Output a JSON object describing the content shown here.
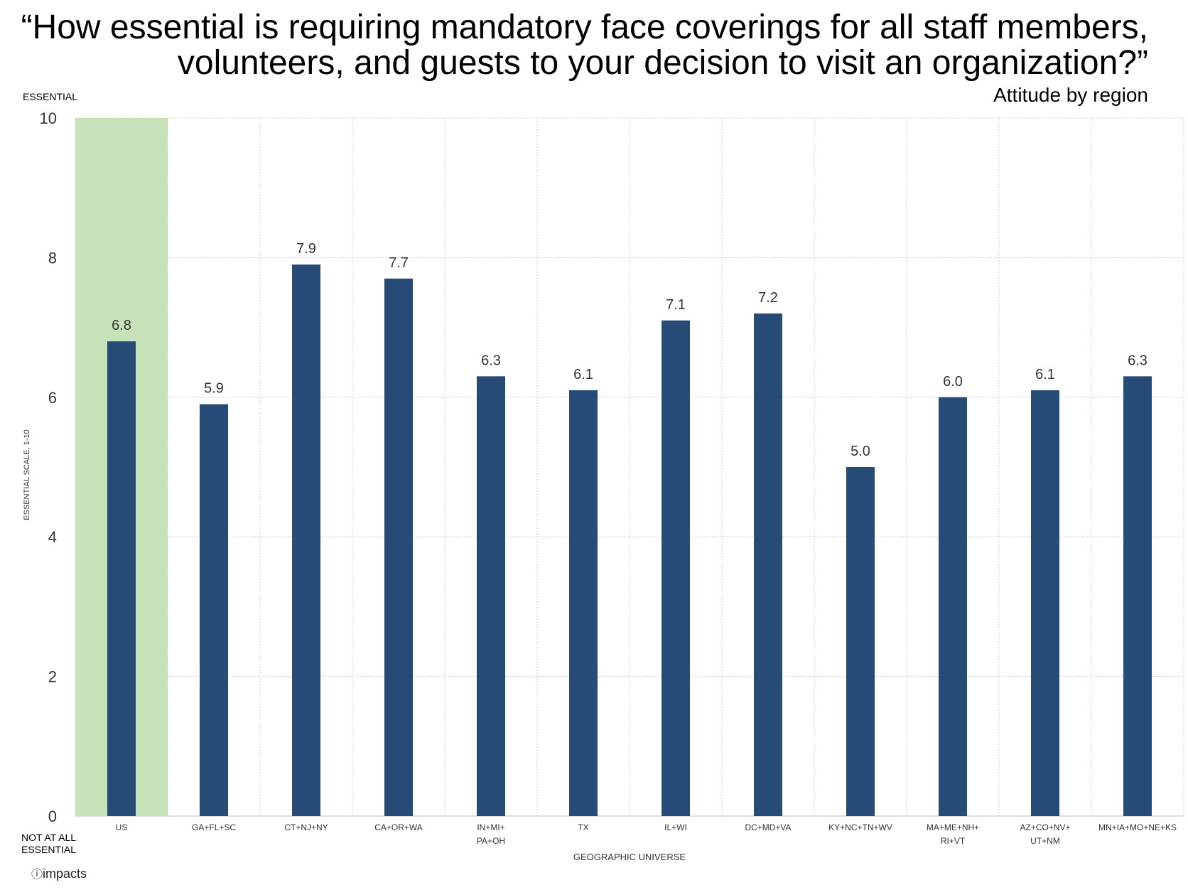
{
  "chart_data": {
    "type": "bar",
    "title": "“How essential is requiring mandatory face coverings for all staff members, volunteers, and guests to your decision to visit an organization?”",
    "subtitle": "Attitude by region",
    "xlabel": "GEOGRAPHIC UNIVERSE",
    "ylabel": "ESSENTIAL SCALE, 1-10",
    "y_top_label": "ESSENTIAL",
    "y_bottom_label": "NOT AT ALL ESSENTIAL",
    "ylim": [
      0,
      10
    ],
    "yticks": [
      0,
      2,
      4,
      6,
      8,
      10
    ],
    "grid": true,
    "categories": [
      [
        "US"
      ],
      [
        "GA+FL+SC"
      ],
      [
        "CT+NJ+NY"
      ],
      [
        "CA+OR+WA"
      ],
      [
        "IN+MI+",
        "PA+OH"
      ],
      [
        "TX"
      ],
      [
        "IL+WI"
      ],
      [
        "DC+MD+VA"
      ],
      [
        "KY+NC+TN+WV"
      ],
      [
        "MA+ME+NH+",
        "RI+VT"
      ],
      [
        "AZ+CO+NV+",
        "UT+NM"
      ],
      [
        "MN+IA+MO+NE+KS"
      ]
    ],
    "values": [
      6.8,
      5.9,
      7.9,
      7.7,
      6.3,
      6.1,
      7.1,
      7.2,
      5.0,
      6.0,
      6.1,
      6.3
    ],
    "value_labels": [
      "6.8",
      "5.9",
      "7.9",
      "7.7",
      "6.3",
      "6.1",
      "7.1",
      "7.2",
      "5.0",
      "6.0",
      "6.1",
      "6.3"
    ],
    "highlighted_category": "US",
    "colors": {
      "bar": "#264b77",
      "highlight": "#c7e1b8",
      "grid": "#cccccc"
    }
  },
  "logo": {
    "text": "impacts"
  }
}
